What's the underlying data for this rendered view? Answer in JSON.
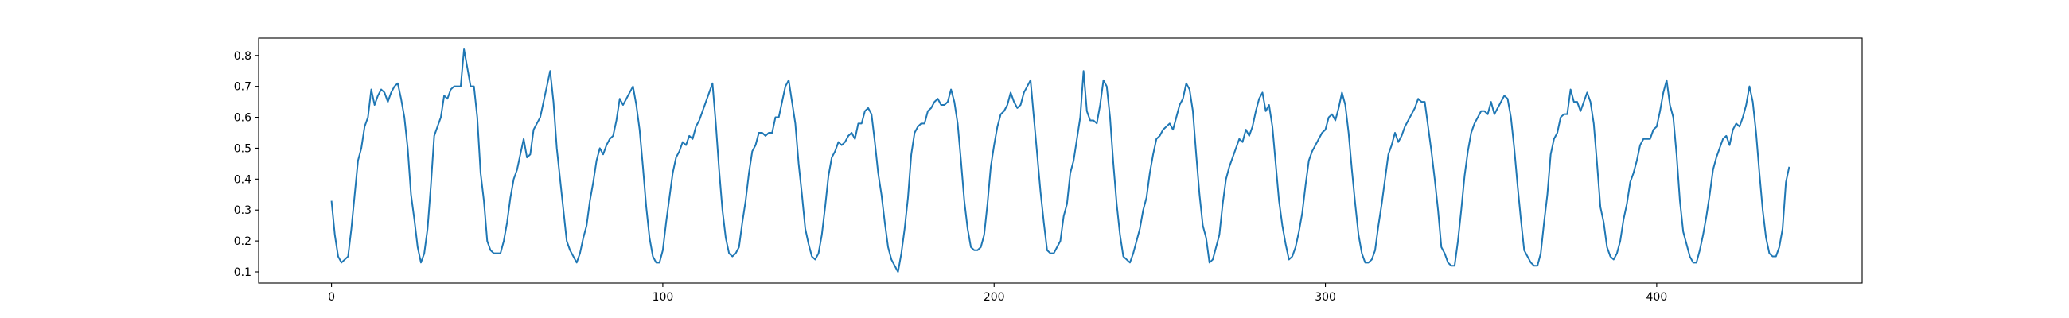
{
  "chart_data": {
    "type": "line",
    "color": "#1f77b4",
    "xlim": [
      -22,
      462
    ],
    "xticks": [
      0,
      100,
      200,
      300,
      400
    ],
    "ylim": [
      0.064,
      0.856
    ],
    "yticks": [
      0.1,
      0.2,
      0.3,
      0.4,
      0.5,
      0.6,
      0.7,
      0.8
    ],
    "values": [
      0.33,
      0.22,
      0.15,
      0.13,
      0.14,
      0.15,
      0.24,
      0.35,
      0.46,
      0.5,
      0.57,
      0.6,
      0.69,
      0.64,
      0.67,
      0.69,
      0.68,
      0.65,
      0.68,
      0.7,
      0.71,
      0.66,
      0.6,
      0.5,
      0.35,
      0.27,
      0.18,
      0.13,
      0.16,
      0.24,
      0.38,
      0.54,
      0.57,
      0.6,
      0.67,
      0.66,
      0.69,
      0.7,
      0.7,
      0.7,
      0.82,
      0.76,
      0.7,
      0.7,
      0.6,
      0.42,
      0.33,
      0.2,
      0.17,
      0.16,
      0.16,
      0.16,
      0.2,
      0.26,
      0.34,
      0.4,
      0.43,
      0.48,
      0.53,
      0.47,
      0.48,
      0.56,
      0.58,
      0.6,
      0.65,
      0.7,
      0.75,
      0.65,
      0.5,
      0.4,
      0.3,
      0.2,
      0.17,
      0.15,
      0.13,
      0.16,
      0.21,
      0.25,
      0.33,
      0.39,
      0.46,
      0.5,
      0.48,
      0.51,
      0.53,
      0.54,
      0.59,
      0.66,
      0.64,
      0.66,
      0.68,
      0.7,
      0.64,
      0.56,
      0.44,
      0.31,
      0.21,
      0.15,
      0.13,
      0.13,
      0.17,
      0.26,
      0.34,
      0.42,
      0.47,
      0.49,
      0.52,
      0.51,
      0.54,
      0.53,
      0.57,
      0.59,
      0.62,
      0.65,
      0.68,
      0.71,
      0.58,
      0.43,
      0.3,
      0.21,
      0.16,
      0.15,
      0.16,
      0.18,
      0.26,
      0.33,
      0.42,
      0.49,
      0.51,
      0.55,
      0.55,
      0.54,
      0.55,
      0.55,
      0.6,
      0.6,
      0.65,
      0.7,
      0.72,
      0.65,
      0.58,
      0.45,
      0.35,
      0.24,
      0.19,
      0.15,
      0.14,
      0.16,
      0.22,
      0.31,
      0.41,
      0.47,
      0.49,
      0.52,
      0.51,
      0.52,
      0.54,
      0.55,
      0.53,
      0.58,
      0.58,
      0.62,
      0.63,
      0.61,
      0.52,
      0.42,
      0.35,
      0.26,
      0.18,
      0.14,
      0.12,
      0.1,
      0.16,
      0.24,
      0.34,
      0.48,
      0.55,
      0.57,
      0.58,
      0.58,
      0.62,
      0.63,
      0.65,
      0.66,
      0.64,
      0.64,
      0.65,
      0.69,
      0.65,
      0.58,
      0.46,
      0.33,
      0.24,
      0.18,
      0.17,
      0.17,
      0.18,
      0.22,
      0.32,
      0.44,
      0.51,
      0.57,
      0.61,
      0.62,
      0.64,
      0.68,
      0.65,
      0.63,
      0.64,
      0.68,
      0.7,
      0.72,
      0.6,
      0.48,
      0.36,
      0.26,
      0.17,
      0.16,
      0.16,
      0.18,
      0.2,
      0.28,
      0.32,
      0.42,
      0.46,
      0.53,
      0.6,
      0.75,
      0.62,
      0.59,
      0.59,
      0.58,
      0.64,
      0.72,
      0.7,
      0.6,
      0.45,
      0.32,
      0.22,
      0.15,
      0.14,
      0.13,
      0.16,
      0.2,
      0.24,
      0.3,
      0.34,
      0.42,
      0.48,
      0.53,
      0.54,
      0.56,
      0.57,
      0.58,
      0.56,
      0.6,
      0.64,
      0.66,
      0.71,
      0.69,
      0.62,
      0.48,
      0.35,
      0.25,
      0.21,
      0.13,
      0.14,
      0.18,
      0.22,
      0.32,
      0.4,
      0.44,
      0.47,
      0.5,
      0.53,
      0.52,
      0.56,
      0.54,
      0.57,
      0.62,
      0.66,
      0.68,
      0.62,
      0.64,
      0.57,
      0.45,
      0.33,
      0.25,
      0.19,
      0.14,
      0.15,
      0.18,
      0.23,
      0.29,
      0.38,
      0.46,
      0.49,
      0.51,
      0.53,
      0.55,
      0.56,
      0.6,
      0.61,
      0.59,
      0.63,
      0.68,
      0.64,
      0.55,
      0.43,
      0.32,
      0.22,
      0.16,
      0.13,
      0.13,
      0.14,
      0.17,
      0.25,
      0.32,
      0.4,
      0.48,
      0.51,
      0.55,
      0.52,
      0.54,
      0.57,
      0.59,
      0.61,
      0.63,
      0.66,
      0.65,
      0.65,
      0.57,
      0.49,
      0.4,
      0.3,
      0.18,
      0.16,
      0.13,
      0.12,
      0.12,
      0.2,
      0.3,
      0.41,
      0.49,
      0.55,
      0.58,
      0.6,
      0.62,
      0.62,
      0.61,
      0.65,
      0.61,
      0.63,
      0.65,
      0.67,
      0.66,
      0.6,
      0.5,
      0.38,
      0.27,
      0.17,
      0.15,
      0.13,
      0.12,
      0.12,
      0.16,
      0.26,
      0.35,
      0.48,
      0.53,
      0.55,
      0.6,
      0.61,
      0.61,
      0.69,
      0.65,
      0.65,
      0.62,
      0.65,
      0.68,
      0.65,
      0.58,
      0.45,
      0.31,
      0.26,
      0.18,
      0.15,
      0.14,
      0.16,
      0.2,
      0.27,
      0.32,
      0.39,
      0.42,
      0.46,
      0.51,
      0.53,
      0.53,
      0.53,
      0.56,
      0.57,
      0.62,
      0.68,
      0.72,
      0.64,
      0.6,
      0.48,
      0.33,
      0.23,
      0.19,
      0.15,
      0.13,
      0.13,
      0.17,
      0.22,
      0.28,
      0.35,
      0.43,
      0.47,
      0.5,
      0.53,
      0.54,
      0.51,
      0.56,
      0.58,
      0.57,
      0.6,
      0.64,
      0.7,
      0.65,
      0.55,
      0.42,
      0.3,
      0.21,
      0.16,
      0.15,
      0.15,
      0.18,
      0.24,
      0.39,
      0.44
    ]
  }
}
